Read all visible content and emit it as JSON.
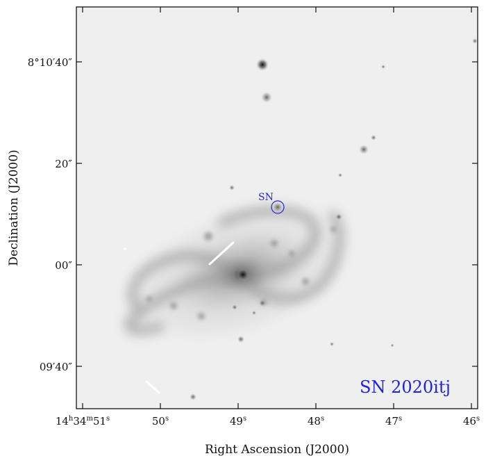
{
  "figure": {
    "marker_label": "SN",
    "name_label": "SN 2020itj",
    "annotation_color": "#2222dd",
    "x_axis_title": "Right Ascension (J2000)",
    "y_axis_title": "Declination (J2000)",
    "x_ticks": [
      {
        "h": "14",
        "m": "34",
        "s": "51"
      },
      {
        "s": "50"
      },
      {
        "s": "49"
      },
      {
        "s": "48"
      },
      {
        "s": "47"
      },
      {
        "s": "46"
      }
    ],
    "y_ticks": [
      "8°10′40″",
      "20″",
      "00″",
      "09′40″"
    ]
  }
}
